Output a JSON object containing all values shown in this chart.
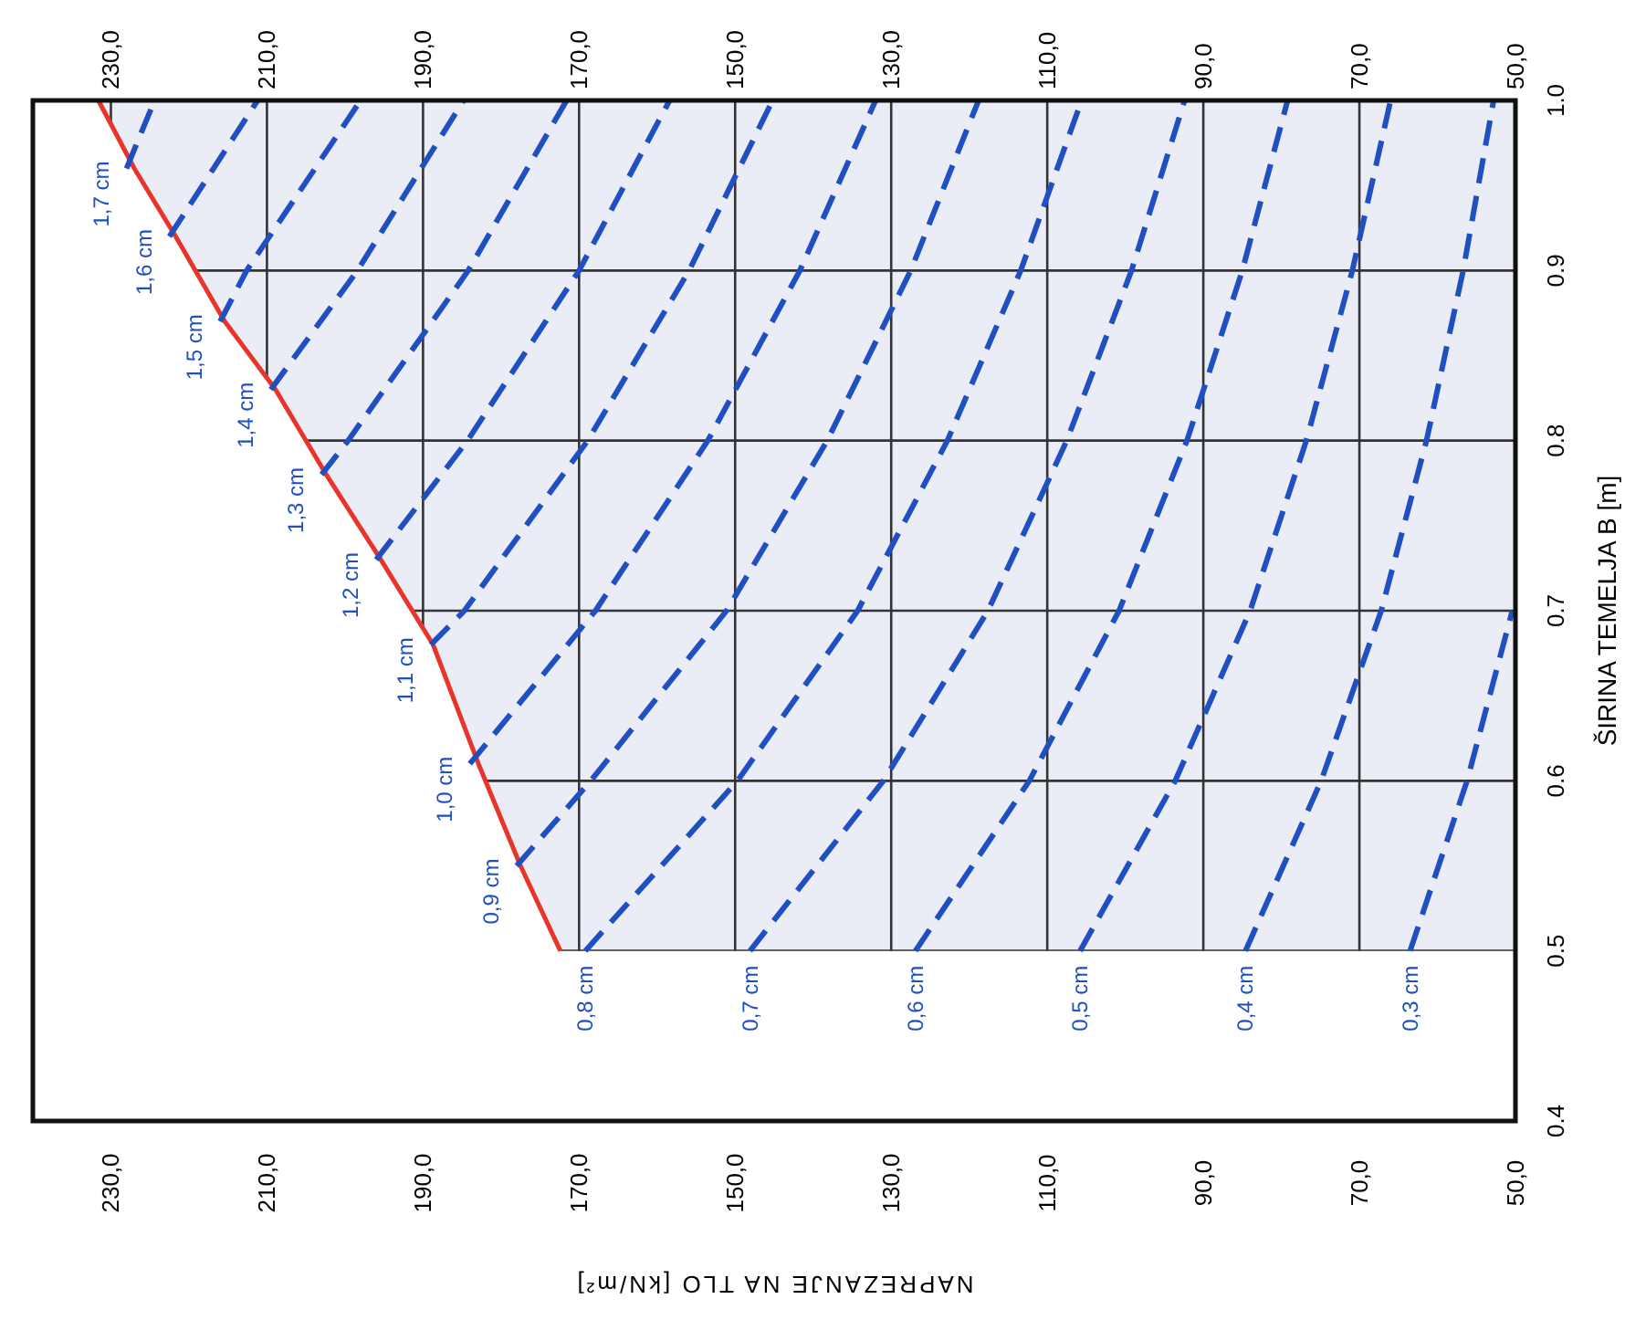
{
  "chart_data": {
    "type": "line",
    "xlabel": "NAPREZANJE NA TLO [kN/m²]",
    "ylabel": "ŠIRINA TEMELJA B [m]",
    "ylim": [
      0.4,
      1.0
    ],
    "yticks": [
      0.4,
      0.5,
      0.6,
      0.7,
      0.8,
      0.9,
      {
        "value": 1.0,
        "label": "1.0"
      }
    ],
    "xlim": [
      240,
      50
    ],
    "xticks": [
      {
        "value": 230,
        "label": "230,0"
      },
      {
        "value": 210,
        "label": "210,0"
      },
      {
        "value": 190,
        "label": "190,0"
      },
      {
        "value": 170,
        "label": "170,0"
      },
      {
        "value": 150,
        "label": "150,0"
      },
      {
        "value": 130,
        "label": "130,0"
      },
      {
        "value": 110,
        "label": "110,0"
      },
      {
        "value": 90,
        "label": "90,0"
      },
      {
        "value": 70,
        "label": "70,0"
      },
      {
        "value": 50,
        "label": "50,0"
      }
    ],
    "x2lim": [
      240,
      50
    ],
    "x2ticks": [
      {
        "value": 230,
        "label": "230,0"
      },
      {
        "value": 210,
        "label": "210,0"
      },
      {
        "value": 190,
        "label": "190,0"
      },
      {
        "value": 170,
        "label": "170,0"
      },
      {
        "value": 150,
        "label": "150,0"
      },
      {
        "value": 130,
        "label": "130,0"
      },
      {
        "value": 110,
        "label": "110,0"
      },
      {
        "value": 90,
        "label": "90,0"
      },
      {
        "value": 70,
        "label": "70,0"
      },
      {
        "value": 50,
        "label": "50,0"
      }
    ],
    "grid": true,
    "marker": "none",
    "bands": [
      {
        "axis": "y",
        "from": 0.5,
        "to": 1.0,
        "color": "#eaecf6"
      }
    ],
    "series": [
      {
        "line_style": "solid",
        "color": "#e8352c",
        "x": [
          172.4,
          177.5,
          182.9,
          188.7,
          195.4,
          202.4,
          208.9,
          215.4,
          221.7,
          227.0,
          231.6
        ],
        "values": [
          0.5,
          0.55,
          0.61,
          0.68,
          0.73,
          0.78,
          0.83,
          0.87,
          0.92,
          0.96,
          1.0
        ]
      },
      {
        "name": "0,3 cm",
        "line_style": "dashed",
        "color": "#1f4fc0",
        "x": [
          63.5,
          56.2,
          50.4
        ],
        "values": [
          0.5,
          0.6,
          0.7
        ]
      },
      {
        "name": "0,4 cm",
        "line_style": "dashed",
        "color": "#1f4fc0",
        "x": [
          84.6,
          74.9,
          67.2,
          61.4,
          56.7,
          52.8
        ],
        "values": [
          0.5,
          0.6,
          0.7,
          0.8,
          0.9,
          1.0
        ]
      },
      {
        "name": "0,5 cm",
        "line_style": "dashed",
        "color": "#1f4fc0",
        "x": [
          105.8,
          93.6,
          84.0,
          76.8,
          70.9,
          66.0
        ],
        "values": [
          0.5,
          0.6,
          0.7,
          0.8,
          0.9,
          1.0
        ]
      },
      {
        "name": "0,6 cm",
        "line_style": "dashed",
        "color": "#1f4fc0",
        "x": [
          126.9,
          112.3,
          100.8,
          92.1,
          85.0,
          79.2
        ],
        "values": [
          0.5,
          0.6,
          0.7,
          0.8,
          0.9,
          1.0
        ]
      },
      {
        "name": "0,7 cm",
        "line_style": "dashed",
        "color": "#1f4fc0",
        "x": [
          148.1,
          131.0,
          117.6,
          107.5,
          99.2,
          92.4
        ],
        "values": [
          0.5,
          0.6,
          0.7,
          0.8,
          0.9,
          1.0
        ]
      },
      {
        "name": "0,8 cm",
        "line_style": "dashed",
        "color": "#1f4fc0",
        "x": [
          169.2,
          149.7,
          134.3,
          122.8,
          113.4,
          105.6
        ],
        "values": [
          0.5,
          0.6,
          0.7,
          0.8,
          0.9,
          1.0
        ]
      },
      {
        "name": "0,9 cm",
        "line_style": "dashed",
        "color": "#1f4fc0",
        "x": [
          178,
          168.5,
          151.1,
          138.2,
          127.5,
          118.8
        ],
        "values": [
          0.55,
          0.6,
          0.7,
          0.8,
          0.9,
          1.0
        ]
      },
      {
        "name": "1,0 cm",
        "line_style": "dashed",
        "color": "#1f4fc0",
        "x": [
          184,
          167.9,
          153.5,
          141.7,
          132.0
        ],
        "values": [
          0.61,
          0.7,
          0.8,
          0.9,
          1.0
        ]
      },
      {
        "name": "1,1 cm",
        "line_style": "dashed",
        "color": "#1f4fc0",
        "x": [
          189,
          184.7,
          168.9,
          155.9,
          145.2
        ],
        "values": [
          0.68,
          0.7,
          0.8,
          0.9,
          1.0
        ]
      },
      {
        "name": "1,2 cm",
        "line_style": "dashed",
        "color": "#1f4fc0",
        "x": [
          196,
          184.3,
          170.0,
          158.4
        ],
        "values": [
          0.73,
          0.8,
          0.9,
          1.0
        ]
      },
      {
        "name": "1,3 cm",
        "line_style": "dashed",
        "color": "#1f4fc0",
        "x": [
          203,
          199.6,
          184.2,
          171.6
        ],
        "values": [
          0.78,
          0.8,
          0.9,
          1.0
        ]
      },
      {
        "name": "1,4 cm",
        "line_style": "dashed",
        "color": "#1f4fc0",
        "x": [
          209.5,
          198.4,
          184.8
        ],
        "values": [
          0.83,
          0.9,
          1.0
        ]
      },
      {
        "name": "1,5 cm",
        "line_style": "dashed",
        "color": "#1f4fc0",
        "x": [
          216,
          212.6,
          198.0
        ],
        "values": [
          0.87,
          0.9,
          1.0
        ]
      },
      {
        "name": "1,6 cm",
        "line_style": "dashed",
        "color": "#1f4fc0",
        "x": [
          222.5,
          211.2
        ],
        "values": [
          0.92,
          1.0
        ]
      },
      {
        "name": "1,7 cm",
        "line_style": "dashed",
        "color": "#1f4fc0",
        "x": [
          228,
          224.4
        ],
        "values": [
          0.96,
          1.0
        ]
      }
    ]
  }
}
